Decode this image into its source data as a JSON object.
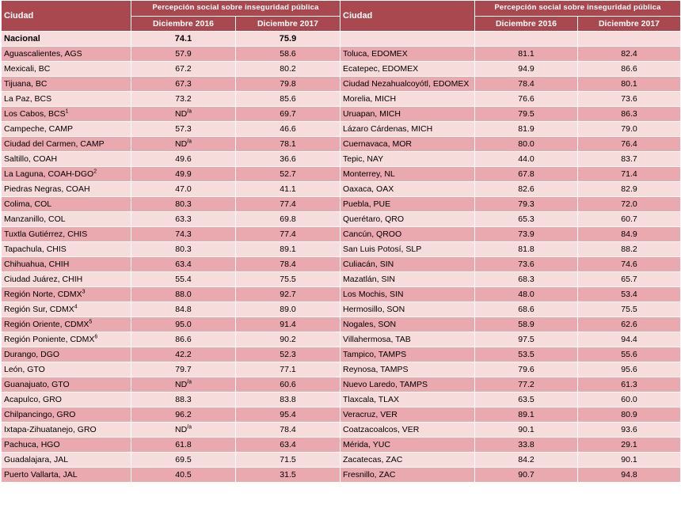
{
  "header": {
    "ciudad_label": "Ciudad",
    "group_label": "Percepción social sobre inseguridad pública",
    "col_2016": "Diciembre 2016",
    "col_2017": "Diciembre 2017"
  },
  "national": {
    "name": "Nacional",
    "v2016": "74.1",
    "v2017": "75.9"
  },
  "rows": [
    {
      "left": {
        "name": "Aguascalientes, AGS",
        "sup": "",
        "v2016": "57.9",
        "v2016_sup": "",
        "v2017": "58.6"
      },
      "right": {
        "name": "Toluca, EDOMEX",
        "v2016": "81.1",
        "v2017": "82.4"
      }
    },
    {
      "left": {
        "name": "Mexicali, BC",
        "sup": "",
        "v2016": "67.2",
        "v2016_sup": "",
        "v2017": "80.2"
      },
      "right": {
        "name": "Ecatepec, EDOMEX",
        "v2016": "94.9",
        "v2017": "86.6"
      }
    },
    {
      "left": {
        "name": "Tijuana, BC",
        "sup": "",
        "v2016": "67.3",
        "v2016_sup": "",
        "v2017": "79.8"
      },
      "right": {
        "name": "Ciudad Nezahualcoyótl, EDOMEX",
        "v2016": "78.4",
        "v2017": "80.1"
      }
    },
    {
      "left": {
        "name": "La Paz, BCS",
        "sup": "",
        "v2016": "73.2",
        "v2016_sup": "",
        "v2017": "85.6"
      },
      "right": {
        "name": "Morelia, MICH",
        "v2016": "76.6",
        "v2017": "73.6"
      }
    },
    {
      "left": {
        "name": "Los Cabos, BCS",
        "sup": "1",
        "v2016": "ND",
        "v2016_sup": "/a",
        "v2017": "69.7"
      },
      "right": {
        "name": "Uruapan, MICH",
        "v2016": "79.5",
        "v2017": "86.3"
      }
    },
    {
      "left": {
        "name": "Campeche, CAMP",
        "sup": "",
        "v2016": "57.3",
        "v2016_sup": "",
        "v2017": "46.6"
      },
      "right": {
        "name": "Lázaro Cárdenas, MICH",
        "v2016": "81.9",
        "v2017": "79.0"
      }
    },
    {
      "left": {
        "name": "Ciudad del Carmen, CAMP",
        "sup": "",
        "v2016": "ND",
        "v2016_sup": "/a",
        "v2017": "78.1"
      },
      "right": {
        "name": "Cuernavaca, MOR",
        "v2016": "80.0",
        "v2017": "76.4"
      }
    },
    {
      "left": {
        "name": "Saltillo, COAH",
        "sup": "",
        "v2016": "49.6",
        "v2016_sup": "",
        "v2017": "36.6"
      },
      "right": {
        "name": "Tepic, NAY",
        "v2016": "44.0",
        "v2017": "83.7"
      }
    },
    {
      "left": {
        "name": "La Laguna, COAH-DGO",
        "sup": "2",
        "v2016": "49.9",
        "v2016_sup": "",
        "v2017": "52.7"
      },
      "right": {
        "name": "Monterrey, NL",
        "v2016": "67.8",
        "v2017": "71.4"
      }
    },
    {
      "left": {
        "name": "Piedras Negras, COAH",
        "sup": "",
        "v2016": "47.0",
        "v2016_sup": "",
        "v2017": "41.1"
      },
      "right": {
        "name": "Oaxaca, OAX",
        "v2016": "82.6",
        "v2017": "82.9"
      }
    },
    {
      "left": {
        "name": "Colima, COL",
        "sup": "",
        "v2016": "80.3",
        "v2016_sup": "",
        "v2017": "77.4"
      },
      "right": {
        "name": "Puebla, PUE",
        "v2016": "79.3",
        "v2017": "72.0"
      }
    },
    {
      "left": {
        "name": "Manzanillo, COL",
        "sup": "",
        "v2016": "63.3",
        "v2016_sup": "",
        "v2017": "69.8"
      },
      "right": {
        "name": "Querétaro, QRO",
        "v2016": "65.3",
        "v2017": "60.7"
      }
    },
    {
      "left": {
        "name": "Tuxtla Gutiérrez, CHIS",
        "sup": "",
        "v2016": "74.3",
        "v2016_sup": "",
        "v2017": "77.4"
      },
      "right": {
        "name": "Cancún, QROO",
        "v2016": "73.9",
        "v2017": "84.9"
      }
    },
    {
      "left": {
        "name": "Tapachula, CHIS",
        "sup": "",
        "v2016": "80.3",
        "v2016_sup": "",
        "v2017": "89.1"
      },
      "right": {
        "name": "San Luis Potosí, SLP",
        "v2016": "81.8",
        "v2017": "88.2"
      }
    },
    {
      "left": {
        "name": "Chihuahua, CHIH",
        "sup": "",
        "v2016": "63.4",
        "v2016_sup": "",
        "v2017": "78.4"
      },
      "right": {
        "name": "Culiacán, SIN",
        "v2016": "73.6",
        "v2017": "74.6"
      }
    },
    {
      "left": {
        "name": "Ciudad Juárez, CHIH",
        "sup": "",
        "v2016": "55.4",
        "v2016_sup": "",
        "v2017": "75.5"
      },
      "right": {
        "name": "Mazatlán, SIN",
        "v2016": "68.3",
        "v2017": "65.7"
      }
    },
    {
      "left": {
        "name": "Región Norte, CDMX",
        "sup": "3",
        "v2016": "88.0",
        "v2016_sup": "",
        "v2017": "92.7"
      },
      "right": {
        "name": "Los Mochis, SIN",
        "v2016": "48.0",
        "v2017": "53.4"
      }
    },
    {
      "left": {
        "name": "Región Sur, CDMX",
        "sup": "4",
        "v2016": "84.8",
        "v2016_sup": "",
        "v2017": "89.0"
      },
      "right": {
        "name": "Hermosillo, SON",
        "v2016": "68.6",
        "v2017": "75.5"
      }
    },
    {
      "left": {
        "name": "Región Oriente, CDMX",
        "sup": "5",
        "v2016": "95.0",
        "v2016_sup": "",
        "v2017": "91.4"
      },
      "right": {
        "name": "Nogales, SON",
        "v2016": "58.9",
        "v2017": "62.6"
      }
    },
    {
      "left": {
        "name": "Región Poniente, CDMX",
        "sup": "6",
        "v2016": "86.6",
        "v2016_sup": "",
        "v2017": "90.2"
      },
      "right": {
        "name": "Villahermosa, TAB",
        "v2016": "97.5",
        "v2017": "94.4"
      }
    },
    {
      "left": {
        "name": "Durango, DGO",
        "sup": "",
        "v2016": "42.2",
        "v2016_sup": "",
        "v2017": "52.3"
      },
      "right": {
        "name": "Tampico, TAMPS",
        "v2016": "53.5",
        "v2017": "55.6"
      }
    },
    {
      "left": {
        "name": "León, GTO",
        "sup": "",
        "v2016": "79.7",
        "v2016_sup": "",
        "v2017": "77.1"
      },
      "right": {
        "name": "Reynosa, TAMPS",
        "v2016": "79.6",
        "v2017": "95.6"
      }
    },
    {
      "left": {
        "name": "Guanajuato, GTO",
        "sup": "",
        "v2016": "ND",
        "v2016_sup": "/a",
        "v2017": "60.6"
      },
      "right": {
        "name": "Nuevo Laredo, TAMPS",
        "v2016": "77.2",
        "v2017": "61.3"
      }
    },
    {
      "left": {
        "name": "Acapulco, GRO",
        "sup": "",
        "v2016": "88.3",
        "v2016_sup": "",
        "v2017": "83.8"
      },
      "right": {
        "name": "Tlaxcala, TLAX",
        "v2016": "63.5",
        "v2017": "60.0"
      }
    },
    {
      "left": {
        "name": "Chilpancingo, GRO",
        "sup": "",
        "v2016": "96.2",
        "v2016_sup": "",
        "v2017": "95.4"
      },
      "right": {
        "name": "Veracruz, VER",
        "v2016": "89.1",
        "v2017": "80.9"
      }
    },
    {
      "left": {
        "name": "Ixtapa-Zihuatanejo, GRO",
        "sup": "",
        "v2016": "ND",
        "v2016_sup": "/a",
        "v2017": "78.4"
      },
      "right": {
        "name": "Coatzacoalcos, VER",
        "v2016": "90.1",
        "v2017": "93.6"
      }
    },
    {
      "left": {
        "name": "Pachuca, HGO",
        "sup": "",
        "v2016": "61.8",
        "v2016_sup": "",
        "v2017": "63.4"
      },
      "right": {
        "name": "Mérida, YUC",
        "v2016": "33.8",
        "v2017": "29.1"
      }
    },
    {
      "left": {
        "name": "Guadalajara, JAL",
        "sup": "",
        "v2016": "69.5",
        "v2016_sup": "",
        "v2017": "71.5"
      },
      "right": {
        "name": "Zacatecas, ZAC",
        "v2016": "84.2",
        "v2017": "90.1"
      }
    },
    {
      "left": {
        "name": "Puerto Vallarta, JAL",
        "sup": "",
        "v2016": "40.5",
        "v2016_sup": "",
        "v2017": "31.5"
      },
      "right": {
        "name": "Fresnillo, ZAC",
        "v2016": "90.7",
        "v2017": "94.8"
      }
    }
  ]
}
